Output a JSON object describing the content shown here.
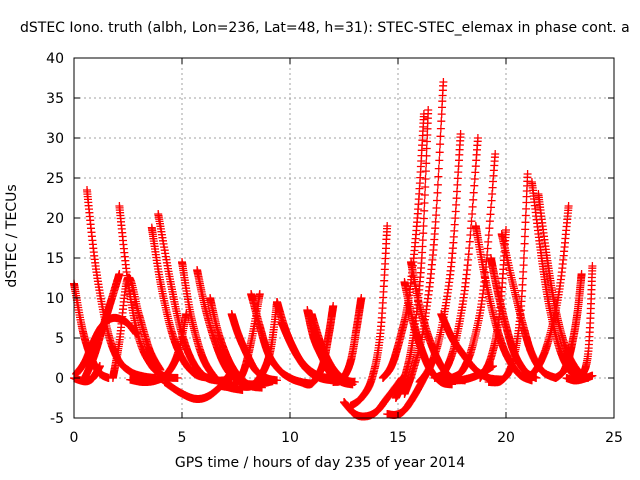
{
  "chart_data": {
    "type": "scatter",
    "title": "dSTEC Iono. truth (albh, Lon=236, Lat=48, h=31): STEC-STEC_elemax in phase cont. a",
    "xlabel": "GPS time / hours of day 235 of year 2014",
    "ylabel": "dSTEC  / TECUs",
    "xlim": [
      0,
      25
    ],
    "ylim": [
      -5,
      40
    ],
    "xticks": [
      "0",
      "5",
      "10",
      "15",
      "20",
      "25"
    ],
    "yticks": [
      "-5",
      "0",
      "5",
      "10",
      "15",
      "20",
      "25",
      "30",
      "35",
      "40"
    ],
    "grid": true,
    "marker": "+",
    "color": "#ff0000",
    "series": [
      {
        "x": [
          0.0,
          0.4,
          0.8,
          1.2,
          1.6
        ],
        "y": [
          11.8,
          6.0,
          2.5,
          0.6,
          0.0
        ]
      },
      {
        "x": [
          0.0,
          0.3,
          0.6,
          0.9,
          1.2
        ],
        "y": [
          0.0,
          -0.3,
          -0.4,
          0.1,
          1.5
        ]
      },
      {
        "x": [
          0.1,
          0.5,
          0.9,
          1.3,
          1.8,
          2.4,
          2.9
        ],
        "y": [
          0.5,
          2.0,
          4.5,
          6.5,
          7.5,
          7.0,
          5.5
        ]
      },
      {
        "x": [
          0.6,
          1.0,
          1.5,
          2.0,
          2.6,
          3.2,
          3.8
        ],
        "y": [
          23.5,
          14.0,
          6.5,
          2.5,
          0.8,
          0.2,
          0.0
        ]
      },
      {
        "x": [
          0.5,
          0.9,
          1.3,
          1.7,
          2.1
        ],
        "y": [
          0.0,
          2.5,
          6.0,
          9.5,
          13.0
        ]
      },
      {
        "x": [
          2.1,
          2.5,
          3.0,
          3.6,
          4.2,
          4.8
        ],
        "y": [
          21.5,
          12.0,
          5.0,
          1.5,
          0.2,
          0.0
        ]
      },
      {
        "x": [
          1.8,
          2.1,
          2.5,
          3.0,
          3.5,
          4.0
        ],
        "y": [
          0.0,
          4.5,
          12.5,
          8.0,
          3.5,
          1.0
        ]
      },
      {
        "x": [
          3.6,
          4.0,
          4.5,
          5.0,
          5.6,
          6.3
        ],
        "y": [
          18.8,
          12.0,
          6.0,
          2.5,
          0.5,
          0.0
        ]
      },
      {
        "x": [
          3.9,
          4.4,
          4.9,
          5.4,
          6.0,
          6.6,
          7.3
        ],
        "y": [
          20.5,
          13.0,
          6.5,
          2.5,
          0.3,
          -0.3,
          -0.2
        ]
      },
      {
        "x": [
          2.6,
          3.2,
          3.8,
          4.3,
          4.8,
          5.2
        ],
        "y": [
          -0.2,
          -0.5,
          -0.3,
          0.5,
          3.0,
          8.0
        ]
      },
      {
        "x": [
          5.0,
          5.4,
          5.9,
          6.4,
          7.0,
          7.8
        ],
        "y": [
          14.5,
          8.0,
          3.0,
          0.5,
          -1.0,
          -1.5
        ]
      },
      {
        "x": [
          5.7,
          6.1,
          6.6,
          7.1,
          7.7,
          8.4,
          9.2
        ],
        "y": [
          13.5,
          8.5,
          4.0,
          1.0,
          -0.5,
          -0.8,
          -0.4
        ]
      },
      {
        "x": [
          4.2,
          4.9,
          5.6,
          6.2,
          6.8,
          7.3
        ],
        "y": [
          -0.5,
          -1.8,
          -2.6,
          -2.3,
          -1.0,
          0.8
        ]
      },
      {
        "x": [
          6.3,
          6.7,
          7.2,
          7.7,
          8.2,
          8.7
        ],
        "y": [
          10.0,
          5.5,
          2.0,
          0.0,
          -1.0,
          -1.2
        ]
      },
      {
        "x": [
          7.3,
          7.6,
          8.0,
          8.4,
          8.9,
          9.4
        ],
        "y": [
          8.0,
          5.5,
          3.0,
          1.0,
          0.0,
          -0.3
        ]
      },
      {
        "x": [
          6.8,
          7.3,
          7.8,
          8.2,
          8.6
        ],
        "y": [
          -1.0,
          -1.0,
          0.5,
          4.5,
          10.5
        ]
      },
      {
        "x": [
          8.2,
          8.6,
          9.0,
          9.5,
          10.0,
          10.5,
          11.0
        ],
        "y": [
          10.5,
          6.5,
          3.0,
          1.0,
          0.0,
          -0.5,
          -0.7
        ]
      },
      {
        "x": [
          7.7,
          8.2,
          8.7,
          9.1,
          9.4
        ],
        "y": [
          -1.0,
          -1.0,
          0.5,
          3.5,
          9.5
        ]
      },
      {
        "x": [
          9.4,
          9.8,
          10.3,
          10.8,
          11.4,
          12.0
        ],
        "y": [
          9.5,
          6.0,
          3.0,
          1.0,
          0.0,
          -0.3
        ]
      },
      {
        "x": [
          9.6,
          10.0,
          10.4,
          10.9,
          11.4,
          11.9
        ],
        "y": [
          7.0,
          4.5,
          2.5,
          1.0,
          0.2,
          0.0
        ]
      },
      {
        "x": [
          10.8,
          11.1,
          11.5,
          11.9,
          12.4,
          12.9
        ],
        "y": [
          8.5,
          5.0,
          2.5,
          0.5,
          -0.5,
          -0.8
        ]
      },
      {
        "x": [
          11.0,
          11.4,
          11.8,
          12.2,
          12.6,
          13.0
        ],
        "y": [
          8.0,
          4.5,
          2.0,
          0.5,
          -0.3,
          -0.5
        ]
      },
      {
        "x": [
          10.5,
          11.0,
          11.5,
          11.8,
          12.0
        ],
        "y": [
          -0.5,
          -0.7,
          1.5,
          5.5,
          9.0
        ]
      },
      {
        "x": [
          12.0,
          12.4,
          12.8,
          13.1,
          13.3
        ],
        "y": [
          -0.5,
          -0.2,
          2.0,
          6.5,
          10.0
        ]
      },
      {
        "x": [
          12.5,
          13.0,
          13.5,
          14.0,
          14.5,
          15.2
        ],
        "y": [
          -3.0,
          -4.5,
          -4.8,
          -4.2,
          -2.5,
          0.0
        ]
      },
      {
        "x": [
          12.8,
          13.3,
          13.8,
          14.2,
          14.5
        ],
        "y": [
          -3.5,
          -2.5,
          0.0,
          6.0,
          19.0
        ]
      },
      {
        "x": [
          14.5,
          14.9,
          15.3,
          15.8,
          16.3
        ],
        "y": [
          -4.5,
          -4.6,
          -4.0,
          -2.0,
          0.5
        ]
      },
      {
        "x": [
          14.3,
          14.7,
          15.1,
          15.5,
          15.9,
          16.2
        ],
        "y": [
          0.0,
          1.5,
          5.0,
          10.0,
          20.0,
          33.0
        ]
      },
      {
        "x": [
          14.9,
          15.3,
          15.7,
          16.1,
          16.4
        ],
        "y": [
          -2.5,
          0.0,
          5.0,
          15.0,
          33.5
        ]
      },
      {
        "x": [
          15.3,
          15.7,
          16.2,
          16.7,
          17.1
        ],
        "y": [
          -2.0,
          1.0,
          6.5,
          18.0,
          37.0
        ]
      },
      {
        "x": [
          15.3,
          15.7,
          16.1,
          16.5,
          17.0,
          17.5
        ],
        "y": [
          12.0,
          7.0,
          3.5,
          1.0,
          -0.5,
          -0.8
        ]
      },
      {
        "x": [
          15.6,
          16.0,
          16.5,
          17.0,
          17.5,
          18.1
        ],
        "y": [
          14.5,
          9.0,
          4.5,
          1.5,
          0.0,
          -0.3
        ]
      },
      {
        "x": [
          16.0,
          16.5,
          17.0,
          17.5,
          17.9
        ],
        "y": [
          -0.5,
          1.5,
          6.0,
          15.0,
          30.5
        ]
      },
      {
        "x": [
          16.7,
          17.2,
          17.7,
          18.2,
          18.7
        ],
        "y": [
          0.0,
          1.0,
          5.0,
          13.5,
          30.0
        ]
      },
      {
        "x": [
          17.0,
          17.5,
          18.0,
          18.6,
          19.2,
          19.8
        ],
        "y": [
          8.0,
          5.0,
          3.0,
          1.0,
          0.0,
          -0.2
        ]
      },
      {
        "x": [
          17.5,
          18.0,
          18.5,
          19.0,
          19.5
        ],
        "y": [
          0.0,
          1.0,
          4.5,
          12.0,
          28.0
        ]
      },
      {
        "x": [
          17.0,
          17.6,
          18.2,
          18.8,
          19.4
        ],
        "y": [
          0.0,
          -0.3,
          -0.1,
          0.5,
          1.5
        ]
      },
      {
        "x": [
          18.6,
          19.0,
          19.5,
          20.0,
          20.6,
          21.2
        ],
        "y": [
          19.0,
          13.0,
          7.0,
          3.0,
          0.5,
          -0.3
        ]
      },
      {
        "x": [
          19.3,
          19.6,
          20.0,
          20.4,
          20.9,
          21.4
        ],
        "y": [
          15.0,
          11.0,
          6.5,
          3.0,
          0.8,
          0.0
        ]
      },
      {
        "x": [
          18.8,
          19.3,
          19.7,
          20.0
        ],
        "y": [
          0.0,
          2.5,
          8.0,
          18.5
        ]
      },
      {
        "x": [
          19.8,
          20.3,
          20.8,
          21.2,
          21.7,
          22.3
        ],
        "y": [
          18.0,
          12.0,
          6.5,
          3.0,
          0.8,
          0.0
        ]
      },
      {
        "x": [
          19.2,
          19.8,
          20.3,
          20.7,
          21.0
        ],
        "y": [
          -0.5,
          -0.3,
          2.0,
          9.0,
          25.5
        ]
      },
      {
        "x": [
          21.2,
          21.6,
          22.0,
          22.5,
          23.0,
          23.5
        ],
        "y": [
          24.5,
          16.0,
          9.0,
          3.5,
          0.8,
          0.0
        ]
      },
      {
        "x": [
          21.5,
          21.9,
          22.3,
          22.8,
          23.3,
          23.8
        ],
        "y": [
          23.0,
          15.0,
          8.5,
          3.5,
          1.0,
          0.0
        ]
      },
      {
        "x": [
          21.0,
          21.5,
          22.0,
          22.5,
          22.9
        ],
        "y": [
          0.0,
          1.5,
          5.0,
          11.5,
          21.5
        ]
      },
      {
        "x": [
          22.3,
          22.7,
          23.0,
          23.3,
          23.5
        ],
        "y": [
          0.0,
          1.0,
          3.5,
          8.0,
          13.0
        ]
      },
      {
        "x": [
          23.0,
          23.4,
          23.8,
          24.0
        ],
        "y": [
          -0.2,
          0.0,
          3.0,
          14.0
        ]
      },
      {
        "x": [
          22.8,
          23.2,
          23.6,
          24.0
        ],
        "y": [
          0.0,
          -0.3,
          -0.1,
          0.3
        ]
      }
    ]
  }
}
